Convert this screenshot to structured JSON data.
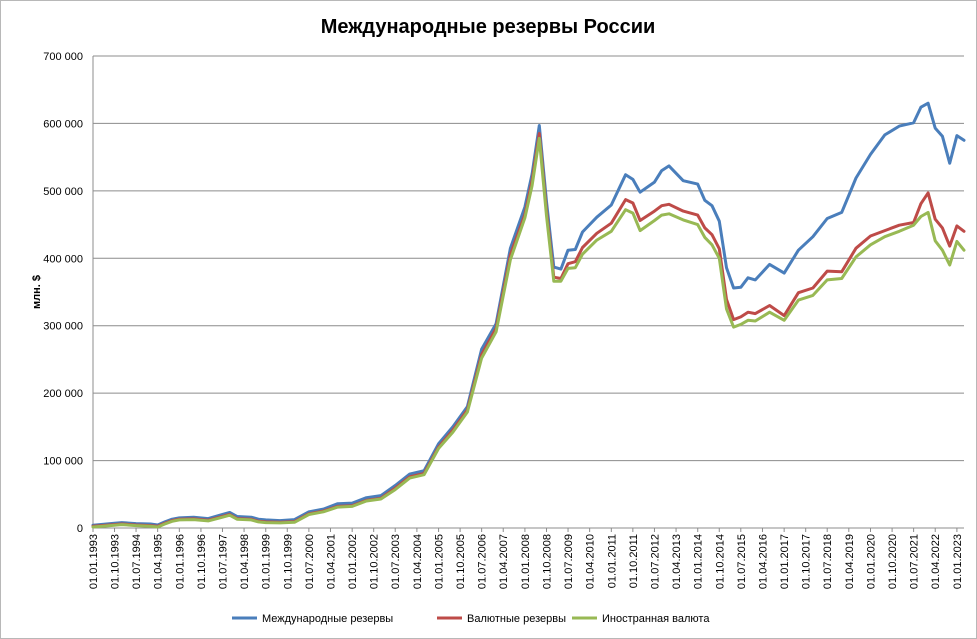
{
  "chart_data": {
    "type": "line",
    "title": "Международные резервы России",
    "xlabel": "",
    "ylabel": "млн. $",
    "ylim": [
      0,
      700000
    ],
    "yticks": [
      0,
      100000,
      200000,
      300000,
      400000,
      500000,
      600000,
      700000
    ],
    "ytick_labels": [
      "0",
      "100 000",
      "200 000",
      "300 000",
      "400 000",
      "500 000",
      "600 000",
      "700 000"
    ],
    "xlim": [
      "1993-01-01",
      "2023-04-01"
    ],
    "xtick_labels": [
      "01.01.1993",
      "01.10.1993",
      "01.07.1994",
      "01.04.1995",
      "01.01.1996",
      "01.10.1996",
      "01.07.1997",
      "01.04.1998",
      "01.01.1999",
      "01.10.1999",
      "01.07.2000",
      "01.04.2001",
      "01.01.2002",
      "01.10.2002",
      "01.07.2003",
      "01.04.2004",
      "01.01.2005",
      "01.10.2005",
      "01.07.2006",
      "01.04.2007",
      "01.01.2008",
      "01.10.2008",
      "01.07.2009",
      "01.04.2010",
      "01.01.2011",
      "01.10.2011",
      "01.07.2012",
      "01.04.2013",
      "01.01.2014",
      "01.10.2014",
      "01.07.2015",
      "01.04.2016",
      "01.01.2017",
      "01.10.2017",
      "01.07.2018",
      "01.04.2019",
      "01.01.2020",
      "01.10.2020",
      "01.07.2021",
      "01.04.2022",
      "01.01.2023"
    ],
    "grid": true,
    "legend_position": "bottom",
    "series": [
      {
        "name": "Международные  резервы",
        "color": "#4a7ebb",
        "points": [
          [
            "1993-01-01",
            4000
          ],
          [
            "1993-10-01",
            7000
          ],
          [
            "1994-01-01",
            8000
          ],
          [
            "1994-07-01",
            6500
          ],
          [
            "1995-01-01",
            6000
          ],
          [
            "1995-04-01",
            4500
          ],
          [
            "1995-07-01",
            9000
          ],
          [
            "1995-10-01",
            13000
          ],
          [
            "1996-01-01",
            15000
          ],
          [
            "1996-07-01",
            16000
          ],
          [
            "1997-01-01",
            14000
          ],
          [
            "1997-07-01",
            20000
          ],
          [
            "1997-10-01",
            23000
          ],
          [
            "1998-01-01",
            17000
          ],
          [
            "1998-07-01",
            16000
          ],
          [
            "1998-10-01",
            13000
          ],
          [
            "1999-01-01",
            12000
          ],
          [
            "1999-07-01",
            11000
          ],
          [
            "2000-01-01",
            12500
          ],
          [
            "2000-07-01",
            24000
          ],
          [
            "2001-01-01",
            28000
          ],
          [
            "2001-07-01",
            36000
          ],
          [
            "2002-01-01",
            37000
          ],
          [
            "2002-07-01",
            45000
          ],
          [
            "2003-01-01",
            48000
          ],
          [
            "2003-07-01",
            63000
          ],
          [
            "2004-01-01",
            80000
          ],
          [
            "2004-07-01",
            85000
          ],
          [
            "2005-01-01",
            125000
          ],
          [
            "2005-07-01",
            150000
          ],
          [
            "2006-01-01",
            180000
          ],
          [
            "2006-07-01",
            265000
          ],
          [
            "2007-01-01",
            303000
          ],
          [
            "2007-07-01",
            415000
          ],
          [
            "2008-01-01",
            476000
          ],
          [
            "2008-04-01",
            525000
          ],
          [
            "2008-07-01",
            597000
          ],
          [
            "2008-10-01",
            484000
          ],
          [
            "2009-01-01",
            387000
          ],
          [
            "2009-04-01",
            384000
          ],
          [
            "2009-07-01",
            412000
          ],
          [
            "2009-10-01",
            413000
          ],
          [
            "2010-01-01",
            439000
          ],
          [
            "2010-07-01",
            461000
          ],
          [
            "2011-01-01",
            479000
          ],
          [
            "2011-07-01",
            524000
          ],
          [
            "2011-10-01",
            517000
          ],
          [
            "2012-01-01",
            498000
          ],
          [
            "2012-07-01",
            513000
          ],
          [
            "2012-10-01",
            530000
          ],
          [
            "2013-01-01",
            537000
          ],
          [
            "2013-07-01",
            515000
          ],
          [
            "2014-01-01",
            510000
          ],
          [
            "2014-04-01",
            486000
          ],
          [
            "2014-07-01",
            478000
          ],
          [
            "2014-10-01",
            455000
          ],
          [
            "2015-01-01",
            386000
          ],
          [
            "2015-04-01",
            356000
          ],
          [
            "2015-07-01",
            357000
          ],
          [
            "2015-10-01",
            371000
          ],
          [
            "2016-01-01",
            368000
          ],
          [
            "2016-07-01",
            391000
          ],
          [
            "2017-01-01",
            378000
          ],
          [
            "2017-07-01",
            412000
          ],
          [
            "2018-01-01",
            432000
          ],
          [
            "2018-07-01",
            459000
          ],
          [
            "2019-01-01",
            468000
          ],
          [
            "2019-07-01",
            519000
          ],
          [
            "2020-01-01",
            554000
          ],
          [
            "2020-07-01",
            583000
          ],
          [
            "2021-01-01",
            596000
          ],
          [
            "2021-07-01",
            601000
          ],
          [
            "2021-10-01",
            624000
          ],
          [
            "2022-01-01",
            630000
          ],
          [
            "2022-04-01",
            593000
          ],
          [
            "2022-07-01",
            581000
          ],
          [
            "2022-10-01",
            541000
          ],
          [
            "2023-01-01",
            582000
          ],
          [
            "2023-04-01",
            575000
          ]
        ]
      },
      {
        "name": "Валютные резервы",
        "color": "#be4b48",
        "points": [
          [
            "1993-01-01",
            2500
          ],
          [
            "1993-10-01",
            5000
          ],
          [
            "1994-01-01",
            6000
          ],
          [
            "1994-07-01",
            4500
          ],
          [
            "1995-01-01",
            3500
          ],
          [
            "1995-04-01",
            2500
          ],
          [
            "1995-07-01",
            7000
          ],
          [
            "1995-10-01",
            11000
          ],
          [
            "1996-01-01",
            13000
          ],
          [
            "1996-07-01",
            13500
          ],
          [
            "1997-01-01",
            11500
          ],
          [
            "1997-07-01",
            17000
          ],
          [
            "1997-10-01",
            20000
          ],
          [
            "1998-01-01",
            14000
          ],
          [
            "1998-07-01",
            13000
          ],
          [
            "1998-10-01",
            10000
          ],
          [
            "1999-01-01",
            9000
          ],
          [
            "1999-07-01",
            8500
          ],
          [
            "2000-01-01",
            9500
          ],
          [
            "2000-07-01",
            21000
          ],
          [
            "2001-01-01",
            25000
          ],
          [
            "2001-07-01",
            32000
          ],
          [
            "2002-01-01",
            33000
          ],
          [
            "2002-07-01",
            41000
          ],
          [
            "2003-01-01",
            44000
          ],
          [
            "2003-07-01",
            59000
          ],
          [
            "2004-01-01",
            76000
          ],
          [
            "2004-07-01",
            81000
          ],
          [
            "2005-01-01",
            120000
          ],
          [
            "2005-07-01",
            145000
          ],
          [
            "2006-01-01",
            175000
          ],
          [
            "2006-07-01",
            257000
          ],
          [
            "2007-01-01",
            296000
          ],
          [
            "2007-07-01",
            405000
          ],
          [
            "2008-01-01",
            465000
          ],
          [
            "2008-04-01",
            515000
          ],
          [
            "2008-07-01",
            585000
          ],
          [
            "2008-10-01",
            470000
          ],
          [
            "2009-01-01",
            372000
          ],
          [
            "2009-04-01",
            370000
          ],
          [
            "2009-07-01",
            392000
          ],
          [
            "2009-10-01",
            395000
          ],
          [
            "2010-01-01",
            416000
          ],
          [
            "2010-07-01",
            437000
          ],
          [
            "2011-01-01",
            452000
          ],
          [
            "2011-07-01",
            487000
          ],
          [
            "2011-10-01",
            482000
          ],
          [
            "2012-01-01",
            456000
          ],
          [
            "2012-07-01",
            470000
          ],
          [
            "2012-10-01",
            478000
          ],
          [
            "2013-01-01",
            480000
          ],
          [
            "2013-07-01",
            470000
          ],
          [
            "2014-01-01",
            464000
          ],
          [
            "2014-04-01",
            445000
          ],
          [
            "2014-07-01",
            435000
          ],
          [
            "2014-10-01",
            414000
          ],
          [
            "2015-01-01",
            339000
          ],
          [
            "2015-04-01",
            309000
          ],
          [
            "2015-07-01",
            313000
          ],
          [
            "2015-10-01",
            320000
          ],
          [
            "2016-01-01",
            318000
          ],
          [
            "2016-07-01",
            330000
          ],
          [
            "2017-01-01",
            315000
          ],
          [
            "2017-07-01",
            349000
          ],
          [
            "2018-01-01",
            356000
          ],
          [
            "2018-07-01",
            381000
          ],
          [
            "2019-01-01",
            380000
          ],
          [
            "2019-07-01",
            415000
          ],
          [
            "2020-01-01",
            433000
          ],
          [
            "2020-07-01",
            441000
          ],
          [
            "2021-01-01",
            449000
          ],
          [
            "2021-07-01",
            453000
          ],
          [
            "2021-10-01",
            481000
          ],
          [
            "2022-01-01",
            497000
          ],
          [
            "2022-04-01",
            458000
          ],
          [
            "2022-07-01",
            445000
          ],
          [
            "2022-10-01",
            418000
          ],
          [
            "2023-01-01",
            448000
          ],
          [
            "2023-04-01",
            440000
          ]
        ]
      },
      {
        "name": "Иностранная валюта",
        "color": "#98b954",
        "points": [
          [
            "1993-01-01",
            1500
          ],
          [
            "1993-10-01",
            4000
          ],
          [
            "1994-01-01",
            5000
          ],
          [
            "1994-07-01",
            3500
          ],
          [
            "1995-01-01",
            2500
          ],
          [
            "1995-04-01",
            1500
          ],
          [
            "1995-07-01",
            6000
          ],
          [
            "1995-10-01",
            10000
          ],
          [
            "1996-01-01",
            12000
          ],
          [
            "1996-07-01",
            12500
          ],
          [
            "1997-01-01",
            10500
          ],
          [
            "1997-07-01",
            16000
          ],
          [
            "1997-10-01",
            19000
          ],
          [
            "1998-01-01",
            13000
          ],
          [
            "1998-07-01",
            12000
          ],
          [
            "1998-10-01",
            9000
          ],
          [
            "1999-01-01",
            8000
          ],
          [
            "1999-07-01",
            7500
          ],
          [
            "2000-01-01",
            8500
          ],
          [
            "2000-07-01",
            20000
          ],
          [
            "2001-01-01",
            24000
          ],
          [
            "2001-07-01",
            31000
          ],
          [
            "2002-01-01",
            32000
          ],
          [
            "2002-07-01",
            40000
          ],
          [
            "2003-01-01",
            43000
          ],
          [
            "2003-07-01",
            57000
          ],
          [
            "2004-01-01",
            74000
          ],
          [
            "2004-07-01",
            79000
          ],
          [
            "2005-01-01",
            118000
          ],
          [
            "2005-07-01",
            142000
          ],
          [
            "2006-01-01",
            172000
          ],
          [
            "2006-07-01",
            252000
          ],
          [
            "2007-01-01",
            291000
          ],
          [
            "2007-07-01",
            398000
          ],
          [
            "2008-01-01",
            460000
          ],
          [
            "2008-04-01",
            508000
          ],
          [
            "2008-07-01",
            578000
          ],
          [
            "2008-10-01",
            463000
          ],
          [
            "2009-01-01",
            366000
          ],
          [
            "2009-04-01",
            366000
          ],
          [
            "2009-07-01",
            385000
          ],
          [
            "2009-10-01",
            386000
          ],
          [
            "2010-01-01",
            406000
          ],
          [
            "2010-07-01",
            427000
          ],
          [
            "2011-01-01",
            440000
          ],
          [
            "2011-07-01",
            472000
          ],
          [
            "2011-10-01",
            467000
          ],
          [
            "2012-01-01",
            441000
          ],
          [
            "2012-07-01",
            456000
          ],
          [
            "2012-10-01",
            464000
          ],
          [
            "2013-01-01",
            466000
          ],
          [
            "2013-07-01",
            457000
          ],
          [
            "2014-01-01",
            450000
          ],
          [
            "2014-04-01",
            431000
          ],
          [
            "2014-07-01",
            420000
          ],
          [
            "2014-10-01",
            400000
          ],
          [
            "2015-01-01",
            325000
          ],
          [
            "2015-04-01",
            298000
          ],
          [
            "2015-07-01",
            302000
          ],
          [
            "2015-10-01",
            308000
          ],
          [
            "2016-01-01",
            307000
          ],
          [
            "2016-07-01",
            320000
          ],
          [
            "2017-01-01",
            308000
          ],
          [
            "2017-07-01",
            338000
          ],
          [
            "2018-01-01",
            345000
          ],
          [
            "2018-07-01",
            368000
          ],
          [
            "2019-01-01",
            370000
          ],
          [
            "2019-07-01",
            402000
          ],
          [
            "2020-01-01",
            420000
          ],
          [
            "2020-07-01",
            432000
          ],
          [
            "2021-01-01",
            440000
          ],
          [
            "2021-07-01",
            449000
          ],
          [
            "2021-10-01",
            462000
          ],
          [
            "2022-01-01",
            468000
          ],
          [
            "2022-04-01",
            426000
          ],
          [
            "2022-07-01",
            412000
          ],
          [
            "2022-10-01",
            390000
          ],
          [
            "2023-01-01",
            425000
          ],
          [
            "2023-04-01",
            412000
          ]
        ]
      }
    ]
  }
}
